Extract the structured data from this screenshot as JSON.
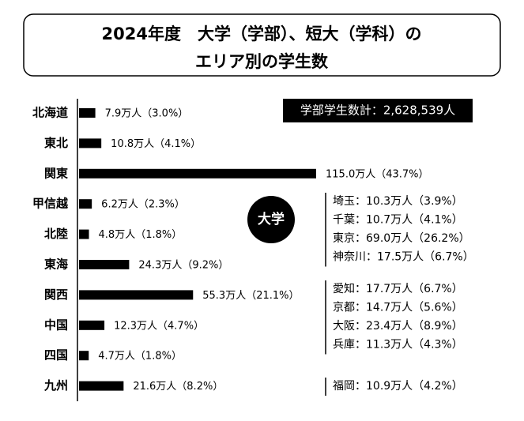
{
  "chart_data": {
    "type": "bar",
    "orientation": "horizontal",
    "title": [
      "2024年度　大学（学部）、短大（学科）の",
      "エリア別の学生数"
    ],
    "categories": [
      "北海道",
      "東北",
      "関東",
      "甲信越",
      "北陸",
      "東海",
      "関西",
      "中国",
      "四国",
      "九州"
    ],
    "values": [
      7.9,
      10.8,
      115.0,
      6.2,
      4.8,
      24.3,
      55.3,
      12.3,
      4.7,
      21.6
    ],
    "value_labels": [
      "7.9万人（3.0%）",
      "10.8万人（4.1%）",
      "115.0万人（43.7%）",
      "6.2万人（2.3%）",
      "4.8万人（1.8%）",
      "24.3万人（9.2%）",
      "55.3万人（21.1%）",
      "12.3万人（4.7%）",
      "4.7万人（1.8%）",
      "21.6万人（8.2%）"
    ],
    "color": "#000000",
    "annotations": {
      "total": "学部学生数計：2,628,539人",
      "badge": "大学",
      "prefectures": [
        [
          "埼玉：10.3万人（3.9%）",
          "千葉：10.7万人（4.1%）",
          "東京：69.0万人（26.2%）",
          "神奈川：17.5万人（6.7%）"
        ],
        [
          "愛知：17.7万人（6.7%）",
          "京都：14.7万人（5.6%）",
          "大阪：23.4万人（8.9%）",
          "兵庫：11.3万人（4.3%）"
        ],
        [
          "福岡：10.9万人（4.2%）"
        ]
      ]
    }
  }
}
